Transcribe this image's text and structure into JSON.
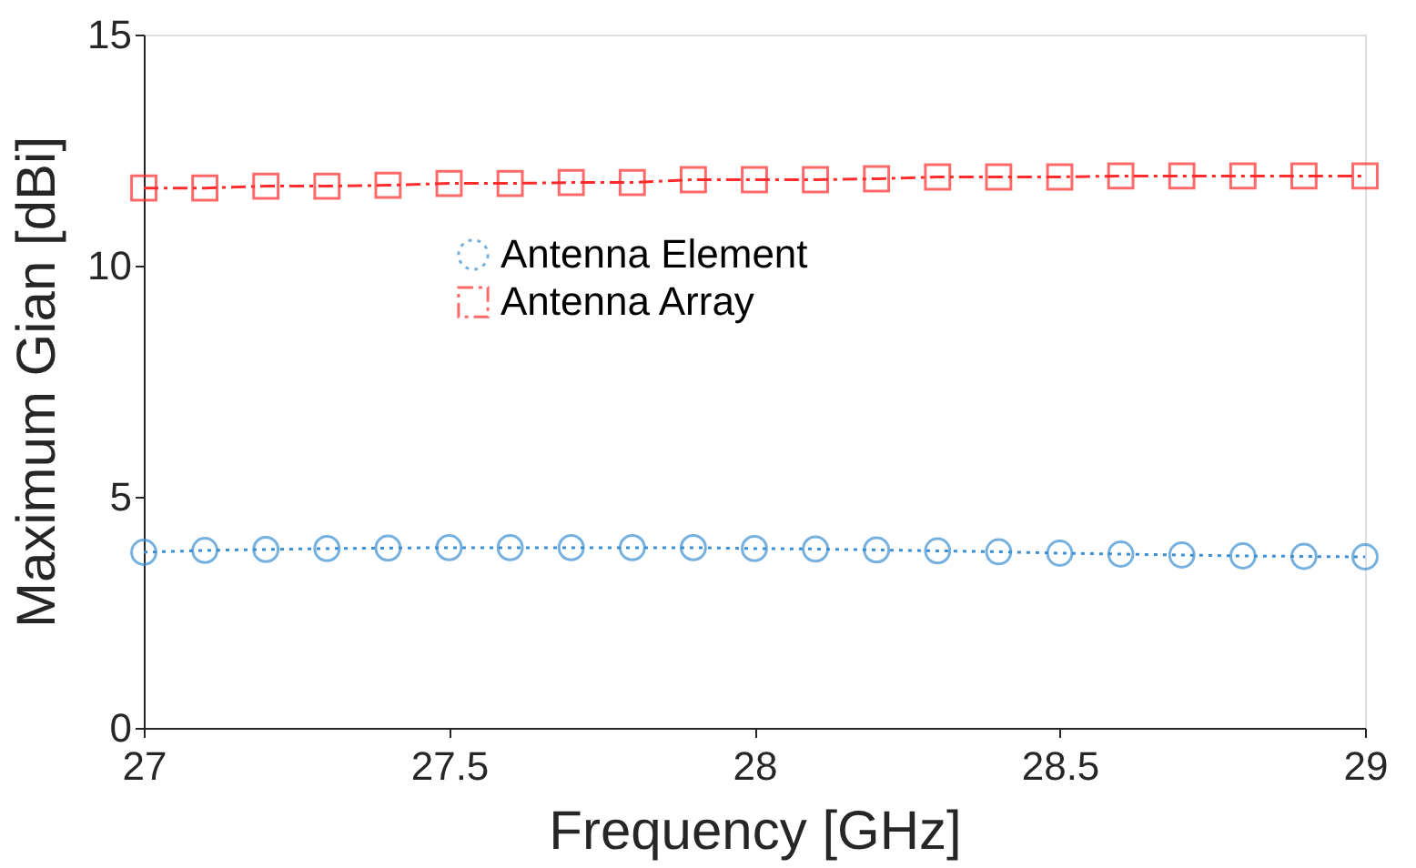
{
  "chart_data": {
    "type": "line",
    "xlabel": "Frequency [GHz]",
    "ylabel": "Maximum Gian [dBi]",
    "x": [
      27,
      27.1,
      27.2,
      27.3,
      27.4,
      27.5,
      27.6,
      27.7,
      27.8,
      27.9,
      28,
      28.1,
      28.2,
      28.3,
      28.4,
      28.5,
      28.6,
      28.7,
      28.8,
      28.9,
      29
    ],
    "series": [
      {
        "name": "Antenna Element",
        "color": "#3d8fd1",
        "marker": "circle",
        "line_style": "dotted",
        "values": [
          3.8,
          3.84,
          3.86,
          3.88,
          3.89,
          3.9,
          3.9,
          3.9,
          3.9,
          3.9,
          3.88,
          3.87,
          3.85,
          3.83,
          3.81,
          3.78,
          3.76,
          3.74,
          3.72,
          3.71,
          3.7
        ]
      },
      {
        "name": "Antenna Array",
        "color": "#ff2a2a",
        "marker": "square",
        "line_style": "dashed",
        "values": [
          11.68,
          11.68,
          11.72,
          11.72,
          11.74,
          11.78,
          11.78,
          11.8,
          11.8,
          11.86,
          11.86,
          11.86,
          11.88,
          11.92,
          11.92,
          11.92,
          11.94,
          11.94,
          11.94,
          11.94,
          11.94
        ]
      }
    ],
    "xlim": [
      27,
      29
    ],
    "xticks": [
      27,
      27.5,
      28,
      28.5,
      29
    ],
    "ylim": [
      0,
      15
    ],
    "yticks": [
      0,
      5,
      10,
      15
    ],
    "grid": false,
    "legend": "top"
  }
}
